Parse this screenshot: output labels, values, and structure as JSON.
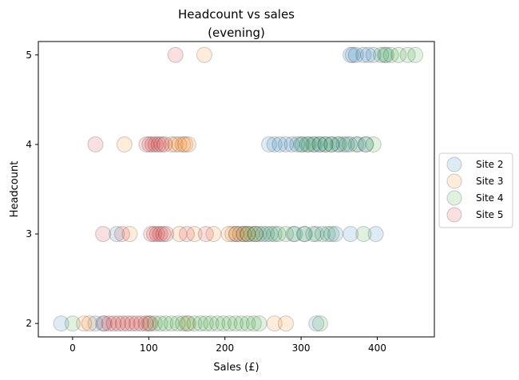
{
  "chart_data": {
    "type": "scatter",
    "title_lines": [
      "Headcount vs sales",
      "(evening)"
    ],
    "xlabel": "Sales (£)",
    "ylabel": "Headcount",
    "xlim": [
      -45,
      475
    ],
    "ylim": [
      1.85,
      5.15
    ],
    "xticks": [
      0,
      100,
      200,
      300,
      400
    ],
    "yticks": [
      2,
      3,
      4,
      5
    ],
    "grid": false,
    "legend_position": "outside right",
    "series": [
      {
        "name": "Site 2",
        "color": "#1f77b4",
        "points": [
          [
            -15,
            2
          ],
          [
            30,
            2
          ],
          [
            40,
            2
          ],
          [
            320,
            2
          ],
          [
            58,
            3
          ],
          [
            215,
            3
          ],
          [
            225,
            3
          ],
          [
            235,
            3
          ],
          [
            245,
            3
          ],
          [
            255,
            3
          ],
          [
            265,
            3
          ],
          [
            290,
            3
          ],
          [
            305,
            3
          ],
          [
            320,
            3
          ],
          [
            335,
            3
          ],
          [
            345,
            3
          ],
          [
            365,
            3
          ],
          [
            398,
            3
          ],
          [
            258,
            4
          ],
          [
            265,
            4
          ],
          [
            272,
            4
          ],
          [
            280,
            4
          ],
          [
            288,
            4
          ],
          [
            295,
            4
          ],
          [
            302,
            4
          ],
          [
            310,
            4
          ],
          [
            318,
            4
          ],
          [
            325,
            4
          ],
          [
            332,
            4
          ],
          [
            340,
            4
          ],
          [
            348,
            4
          ],
          [
            356,
            4
          ],
          [
            364,
            4
          ],
          [
            375,
            4
          ],
          [
            385,
            4
          ],
          [
            365,
            5
          ],
          [
            368,
            5
          ],
          [
            372,
            5
          ],
          [
            382,
            5
          ],
          [
            388,
            5
          ],
          [
            395,
            5
          ],
          [
            410,
            5
          ]
        ]
      },
      {
        "name": "Site 3",
        "color": "#ff7f0e",
        "points": [
          [
            15,
            2
          ],
          [
            22,
            2
          ],
          [
            150,
            2
          ],
          [
            265,
            2
          ],
          [
            280,
            2
          ],
          [
            75,
            3
          ],
          [
            140,
            3
          ],
          [
            160,
            3
          ],
          [
            185,
            3
          ],
          [
            205,
            3
          ],
          [
            210,
            3
          ],
          [
            215,
            3
          ],
          [
            220,
            3
          ],
          [
            225,
            3
          ],
          [
            230,
            3
          ],
          [
            240,
            3
          ],
          [
            68,
            4
          ],
          [
            130,
            4
          ],
          [
            135,
            4
          ],
          [
            140,
            4
          ],
          [
            145,
            4
          ],
          [
            148,
            4
          ],
          [
            152,
            4
          ],
          [
            173,
            5
          ]
        ]
      },
      {
        "name": "Site 4",
        "color": "#2ca02c",
        "points": [
          [
            0,
            2
          ],
          [
            100,
            2
          ],
          [
            108,
            2
          ],
          [
            115,
            2
          ],
          [
            122,
            2
          ],
          [
            130,
            2
          ],
          [
            138,
            2
          ],
          [
            145,
            2
          ],
          [
            152,
            2
          ],
          [
            160,
            2
          ],
          [
            168,
            2
          ],
          [
            175,
            2
          ],
          [
            182,
            2
          ],
          [
            190,
            2
          ],
          [
            198,
            2
          ],
          [
            206,
            2
          ],
          [
            214,
            2
          ],
          [
            222,
            2
          ],
          [
            230,
            2
          ],
          [
            238,
            2
          ],
          [
            245,
            2
          ],
          [
            325,
            2
          ],
          [
            230,
            3
          ],
          [
            240,
            3
          ],
          [
            250,
            3
          ],
          [
            260,
            3
          ],
          [
            270,
            3
          ],
          [
            280,
            3
          ],
          [
            292,
            3
          ],
          [
            304,
            3
          ],
          [
            316,
            3
          ],
          [
            328,
            3
          ],
          [
            340,
            3
          ],
          [
            382,
            3
          ],
          [
            300,
            4
          ],
          [
            308,
            4
          ],
          [
            316,
            4
          ],
          [
            324,
            4
          ],
          [
            332,
            4
          ],
          [
            340,
            4
          ],
          [
            350,
            4
          ],
          [
            360,
            4
          ],
          [
            372,
            4
          ],
          [
            385,
            4
          ],
          [
            395,
            4
          ],
          [
            405,
            5
          ],
          [
            412,
            5
          ],
          [
            418,
            5
          ],
          [
            428,
            5
          ],
          [
            440,
            5
          ],
          [
            450,
            5
          ]
        ]
      },
      {
        "name": "Site 5",
        "color": "#d62728",
        "points": [
          [
            42,
            2
          ],
          [
            48,
            2
          ],
          [
            54,
            2
          ],
          [
            60,
            2
          ],
          [
            66,
            2
          ],
          [
            72,
            2
          ],
          [
            78,
            2
          ],
          [
            84,
            2
          ],
          [
            90,
            2
          ],
          [
            96,
            2
          ],
          [
            102,
            2
          ],
          [
            40,
            3
          ],
          [
            65,
            3
          ],
          [
            103,
            3
          ],
          [
            107,
            3
          ],
          [
            111,
            3
          ],
          [
            115,
            3
          ],
          [
            119,
            3
          ],
          [
            123,
            3
          ],
          [
            150,
            3
          ],
          [
            175,
            3
          ],
          [
            30,
            4
          ],
          [
            97,
            4
          ],
          [
            101,
            4
          ],
          [
            105,
            4
          ],
          [
            109,
            4
          ],
          [
            113,
            4
          ],
          [
            117,
            4
          ],
          [
            121,
            4
          ],
          [
            135,
            5
          ]
        ]
      }
    ]
  }
}
